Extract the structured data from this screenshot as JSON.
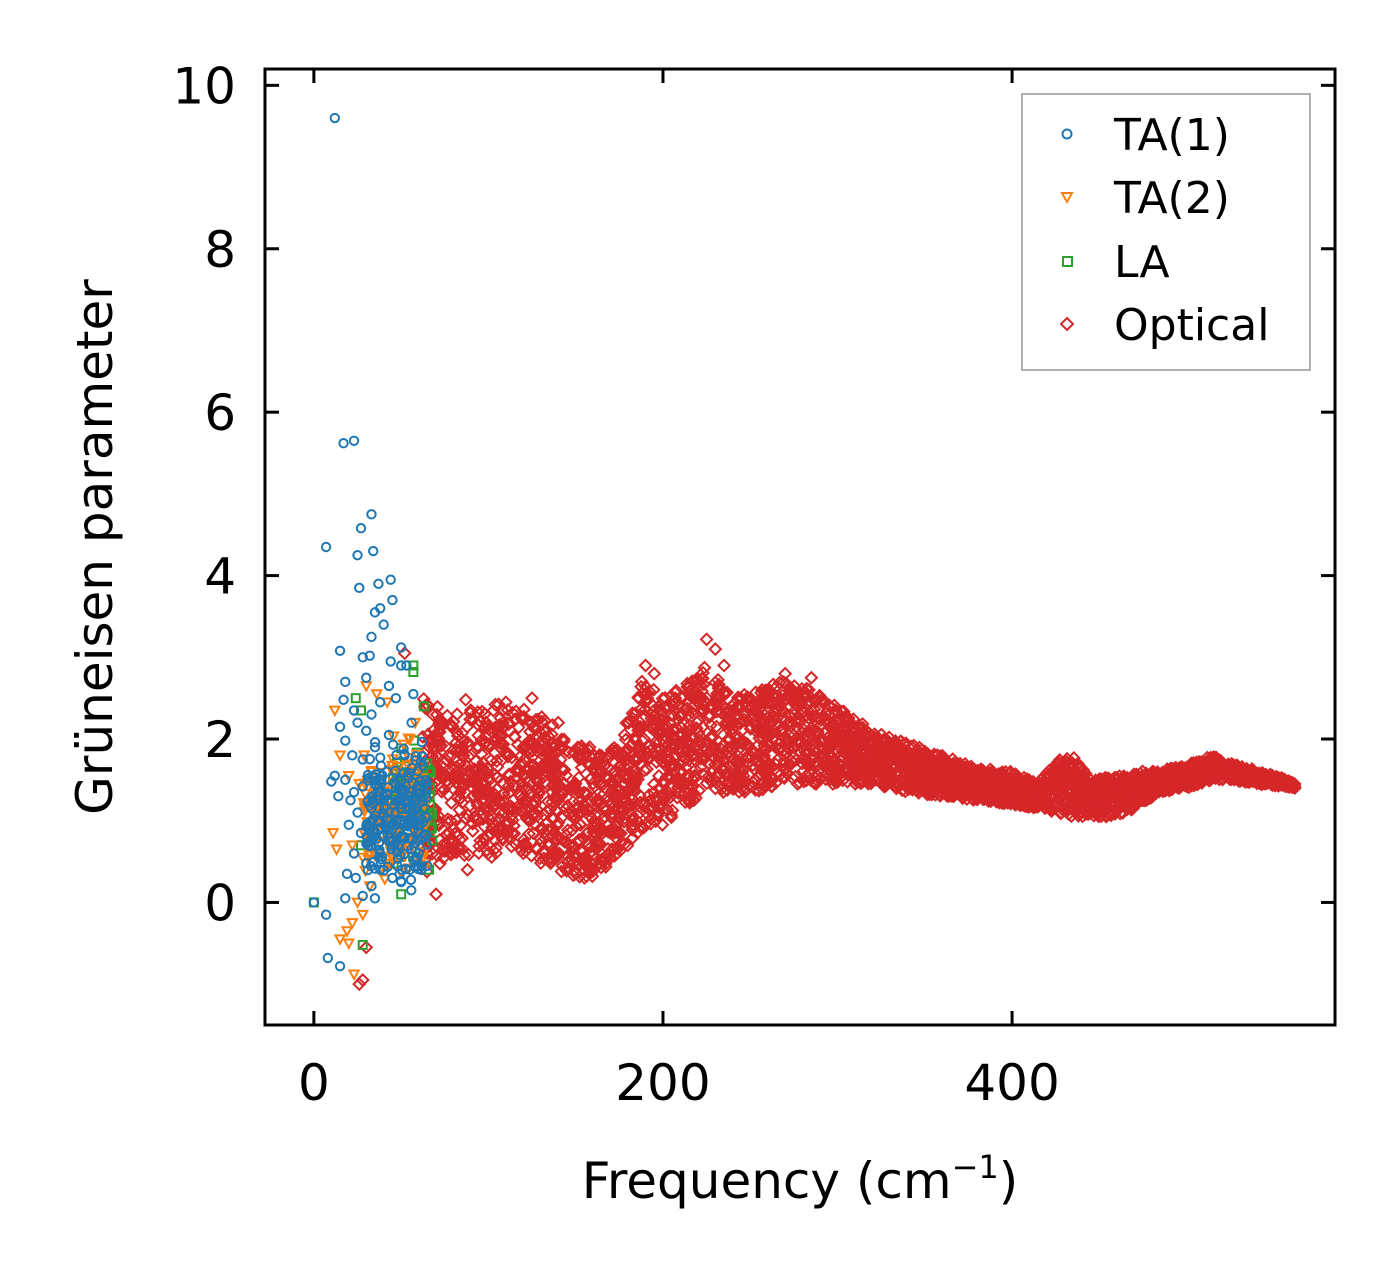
{
  "chart_data": {
    "type": "scatter",
    "xlabel": "Frequency (cm",
    "xlabel_sup": "−1",
    "xlabel_end": ")",
    "ylabel": "Grüneisen parameter",
    "xlim": [
      -28,
      585
    ],
    "ylim": [
      -1.5,
      10.2
    ],
    "xticks": [
      0,
      200,
      400
    ],
    "xtick_labels": [
      "0",
      "200",
      "400"
    ],
    "yticks": [
      0,
      2,
      4,
      6,
      8,
      10
    ],
    "ytick_labels": [
      "0",
      "2",
      "4",
      "6",
      "8",
      "10"
    ],
    "legend_position": "top-right",
    "series": [
      {
        "name": "TA(1)",
        "marker": "circle",
        "color": "#1f77b4",
        "points": [
          [
            12,
            9.6
          ],
          [
            17,
            5.62
          ],
          [
            23,
            5.65
          ],
          [
            7,
            4.35
          ],
          [
            33,
            4.75
          ],
          [
            27,
            4.58
          ],
          [
            34,
            4.3
          ],
          [
            25,
            4.25
          ],
          [
            37,
            3.9
          ],
          [
            44,
            3.95
          ],
          [
            45,
            3.7
          ],
          [
            26,
            3.85
          ],
          [
            35,
            3.55
          ],
          [
            38,
            3.6
          ],
          [
            40,
            3.4
          ],
          [
            33,
            3.25
          ],
          [
            50,
            3.12
          ],
          [
            15,
            3.08
          ],
          [
            28,
            3.0
          ],
          [
            32,
            3.02
          ],
          [
            44,
            2.95
          ],
          [
            50,
            2.9
          ],
          [
            53,
            2.9
          ],
          [
            18,
            2.7
          ],
          [
            30,
            2.75
          ],
          [
            43,
            2.65
          ],
          [
            47,
            2.5
          ],
          [
            57,
            2.55
          ],
          [
            17,
            2.48
          ],
          [
            23,
            2.35
          ],
          [
            33,
            2.3
          ],
          [
            38,
            2.45
          ],
          [
            15,
            2.15
          ],
          [
            25,
            2.2
          ],
          [
            30,
            2.1
          ],
          [
            43,
            2.05
          ],
          [
            18,
            1.98
          ],
          [
            22,
            1.8
          ],
          [
            28,
            1.75
          ],
          [
            35,
            1.9
          ],
          [
            12,
            1.55
          ],
          [
            10,
            1.48
          ],
          [
            18,
            1.5
          ],
          [
            23,
            1.35
          ],
          [
            28,
            1.42
          ],
          [
            14,
            1.3
          ],
          [
            21,
            1.25
          ],
          [
            25,
            1.1
          ],
          [
            33,
            1.15
          ],
          [
            40,
            1.05
          ],
          [
            20,
            0.95
          ],
          [
            27,
            0.85
          ],
          [
            36,
            0.78
          ],
          [
            46,
            0.7
          ],
          [
            23,
            0.6
          ],
          [
            30,
            0.48
          ],
          [
            38,
            0.4
          ],
          [
            19,
            0.35
          ],
          [
            24,
            0.3
          ],
          [
            33,
            0.2
          ],
          [
            18,
            0.05
          ],
          [
            28,
            0.08
          ],
          [
            35,
            0.05
          ],
          [
            0,
            0
          ],
          [
            7,
            -0.15
          ],
          [
            8,
            -0.68
          ],
          [
            15,
            -0.78
          ],
          [
            45,
            0.3
          ],
          [
            50,
            0.25
          ],
          [
            55,
            0.4
          ],
          [
            60,
            0.6
          ],
          [
            48,
            1.5
          ],
          [
            52,
            1.8
          ],
          [
            56,
            2.2
          ],
          [
            42,
            1.6
          ],
          [
            46,
            1.3
          ],
          [
            58,
            1.0
          ],
          [
            62,
            0.8
          ]
        ],
        "cluster": {
          "x_range": [
            30,
            65
          ],
          "y_mean": 1.05,
          "y_spread": 2.1,
          "count": 230
        }
      },
      {
        "name": "TA(2)",
        "marker": "triangle-down",
        "color": "#ff7f0e",
        "points": [
          [
            12,
            2.35
          ],
          [
            30,
            2.65
          ],
          [
            36,
            2.55
          ],
          [
            42,
            2.45
          ],
          [
            15,
            1.8
          ],
          [
            20,
            1.55
          ],
          [
            26,
            1.45
          ],
          [
            33,
            1.6
          ],
          [
            11,
            0.85
          ],
          [
            13,
            0.65
          ],
          [
            22,
            0.7
          ],
          [
            28,
            0.55
          ],
          [
            25,
            0.0
          ],
          [
            22,
            -0.25
          ],
          [
            19,
            -0.35
          ],
          [
            15,
            -0.45
          ],
          [
            20,
            -0.5
          ],
          [
            23,
            -0.88
          ],
          [
            28,
            -0.15
          ],
          [
            32,
            0.2
          ],
          [
            38,
            0.4
          ],
          [
            45,
            0.9
          ],
          [
            50,
            1.3
          ],
          [
            55,
            2.0
          ],
          [
            58,
            2.2
          ]
        ],
        "cluster": {
          "x_range": [
            28,
            64
          ],
          "y_mean": 1.1,
          "y_spread": 2.0,
          "count": 160
        }
      },
      {
        "name": "LA",
        "marker": "square",
        "color": "#2ca02c",
        "points": [
          [
            0,
            0
          ],
          [
            24,
            2.5
          ],
          [
            27,
            2.35
          ],
          [
            57,
            2.9
          ],
          [
            57,
            2.82
          ],
          [
            63,
            2.4
          ],
          [
            65,
            1.7
          ],
          [
            67,
            0.9
          ],
          [
            66,
            0.4
          ],
          [
            28,
            -0.52
          ],
          [
            27,
            0.7
          ],
          [
            50,
            0.1
          ],
          [
            60,
            1.3
          ],
          [
            64,
            1.1
          ]
        ],
        "cluster": {
          "x_range": [
            45,
            68
          ],
          "y_mean": 1.2,
          "y_spread": 1.6,
          "count": 110
        }
      },
      {
        "name": "Optical",
        "marker": "diamond",
        "color": "#d62728",
        "points": [
          [
            26,
            -1.0
          ],
          [
            28,
            -0.95
          ],
          [
            30,
            -0.55
          ],
          [
            52,
            3.05
          ],
          [
            87,
            2.48
          ],
          [
            110,
            2.45
          ],
          [
            125,
            2.5
          ],
          [
            140,
            2.2
          ],
          [
            158,
            1.9
          ],
          [
            150,
            0.35
          ],
          [
            178,
            2.05
          ],
          [
            190,
            2.9
          ],
          [
            195,
            2.8
          ],
          [
            225,
            3.22
          ],
          [
            230,
            3.1
          ],
          [
            235,
            2.9
          ],
          [
            270,
            2.8
          ],
          [
            285,
            2.75
          ],
          [
            190,
            0.95
          ],
          [
            170,
            0.55
          ],
          [
            155,
            0.3
          ],
          [
            120,
            0.6
          ],
          [
            100,
            0.7
          ],
          [
            70,
            0.1
          ],
          [
            88,
            0.4
          ]
        ],
        "envelope": [
          [
            62,
            0.3,
            2.6
          ],
          [
            80,
            0.55,
            2.3
          ],
          [
            100,
            0.55,
            2.45
          ],
          [
            115,
            0.6,
            2.4
          ],
          [
            130,
            0.45,
            2.3
          ],
          [
            145,
            0.3,
            2.05
          ],
          [
            160,
            0.3,
            1.85
          ],
          [
            175,
            0.55,
            1.95
          ],
          [
            188,
            0.9,
            2.75
          ],
          [
            200,
            0.95,
            2.5
          ],
          [
            215,
            1.2,
            2.7
          ],
          [
            225,
            1.35,
            2.9
          ],
          [
            240,
            1.35,
            2.5
          ],
          [
            255,
            1.35,
            2.6
          ],
          [
            270,
            1.45,
            2.75
          ],
          [
            285,
            1.45,
            2.6
          ],
          [
            300,
            1.45,
            2.4
          ],
          [
            320,
            1.45,
            2.1
          ],
          [
            340,
            1.35,
            1.95
          ],
          [
            360,
            1.3,
            1.8
          ],
          [
            380,
            1.25,
            1.65
          ],
          [
            400,
            1.2,
            1.6
          ],
          [
            415,
            1.15,
            1.45
          ],
          [
            425,
            1.1,
            1.75
          ],
          [
            435,
            1.05,
            1.8
          ],
          [
            445,
            1.05,
            1.5
          ],
          [
            460,
            1.05,
            1.55
          ],
          [
            470,
            1.15,
            1.6
          ],
          [
            485,
            1.35,
            1.62
          ],
          [
            500,
            1.4,
            1.68
          ],
          [
            515,
            1.5,
            1.8
          ],
          [
            525,
            1.5,
            1.7
          ],
          [
            540,
            1.45,
            1.62
          ],
          [
            555,
            1.42,
            1.52
          ],
          [
            562,
            1.4,
            1.45
          ]
        ],
        "count": 3800
      }
    ]
  }
}
